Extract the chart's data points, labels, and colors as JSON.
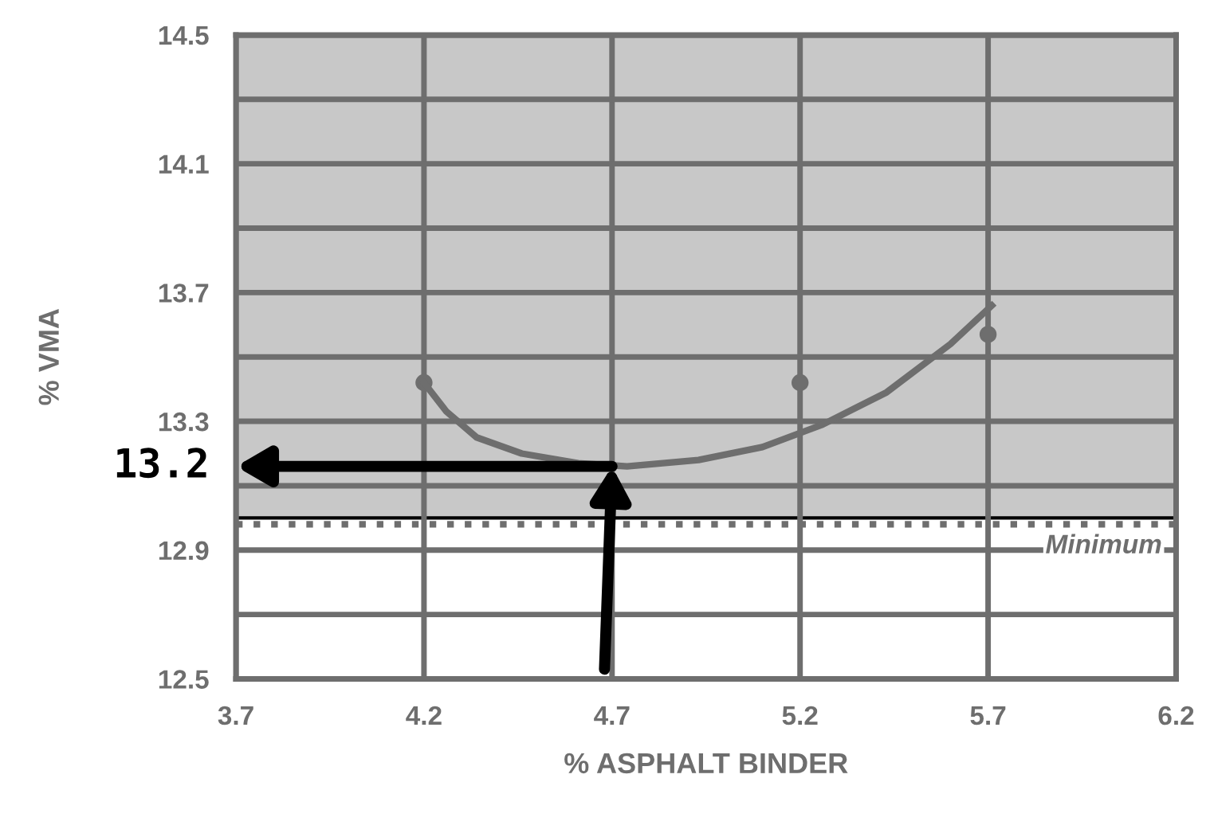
{
  "chart_data": {
    "type": "scatter",
    "xlabel": "% ASPHALT BINDER",
    "ylabel": "% VMA",
    "xlim": [
      3.7,
      6.2
    ],
    "xticks": [
      3.7,
      4.2,
      4.7,
      5.2,
      5.7,
      6.2
    ],
    "ylim": [
      12.5,
      14.5
    ],
    "yticks": [
      12.5,
      {
        "value": 12.7,
        "label": null
      },
      12.9,
      {
        "value": 13.1,
        "label": null
      },
      13.3,
      {
        "value": 13.5,
        "label": null
      },
      13.7,
      {
        "value": 13.9,
        "label": null
      },
      14.1,
      {
        "value": 14.3,
        "label": null
      },
      14.5
    ],
    "grid": true,
    "series": [
      {
        "marker": "circle",
        "color": "#6e6e6e",
        "x": [
          4.2,
          5.2,
          5.7
        ],
        "values": [
          13.42,
          13.42,
          13.57
        ]
      },
      {
        "type": "line",
        "color": "#6e6e6e",
        "marker": "none",
        "x": [
          4.2,
          4.26,
          4.34,
          4.46,
          4.61,
          4.74,
          4.93,
          5.1,
          5.26,
          5.43,
          5.6,
          5.71
        ],
        "values": [
          13.42,
          13.33,
          13.25,
          13.2,
          13.17,
          13.16,
          13.18,
          13.22,
          13.29,
          13.39,
          13.54,
          13.66
        ]
      }
    ],
    "bands": [
      {
        "axis": "y",
        "from": 13.0,
        "to": 14.5,
        "color": "#c8c8c8"
      }
    ],
    "ref_lines": [
      {
        "axis": "y",
        "value": 12.98,
        "label": "Minimum",
        "color": "#6e6e6e",
        "line_style": "dotted"
      }
    ],
    "annotations": [
      {
        "text": "13.2",
        "x": 4.7,
        "y": 13.16
      }
    ]
  }
}
